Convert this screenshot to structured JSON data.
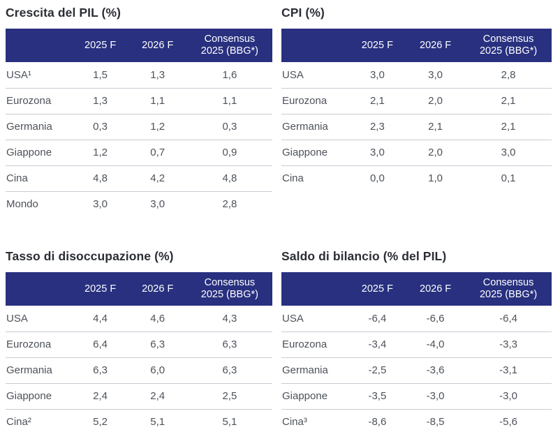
{
  "colors": {
    "header_bg": "#28307f",
    "header_text": "#ffffff",
    "title_text": "#2b2e35",
    "cell_text": "#4d525a",
    "divider": "#c7ccd3",
    "background": "#ffffff"
  },
  "columns": [
    "2025 F",
    "2026 F",
    "Consensus\n2025 (BBG*)"
  ],
  "tables": [
    {
      "title": "Crescita del PIL (%)",
      "rows": [
        {
          "label": "USA¹",
          "values": [
            "1,5",
            "1,3",
            "1,6"
          ]
        },
        {
          "label": "Eurozona",
          "values": [
            "1,3",
            "1,1",
            "1,1"
          ]
        },
        {
          "label": "Germania",
          "values": [
            "0,3",
            "1,2",
            "0,3"
          ]
        },
        {
          "label": "Giappone",
          "values": [
            "1,2",
            "0,7",
            "0,9"
          ]
        },
        {
          "label": "Cina",
          "values": [
            "4,8",
            "4,2",
            "4,8"
          ]
        },
        {
          "label": "Mondo",
          "values": [
            "3,0",
            "3,0",
            "2,8"
          ]
        }
      ]
    },
    {
      "title": "CPI (%)",
      "rows": [
        {
          "label": "USA",
          "values": [
            "3,0",
            "3,0",
            "2,8"
          ]
        },
        {
          "label": "Eurozona",
          "values": [
            "2,1",
            "2,0",
            "2,1"
          ]
        },
        {
          "label": "Germania",
          "values": [
            "2,3",
            "2,1",
            "2,1"
          ]
        },
        {
          "label": "Giappone",
          "values": [
            "3,0",
            "2,0",
            "3,0"
          ]
        },
        {
          "label": "Cina",
          "values": [
            "0,0",
            "1,0",
            "0,1"
          ]
        }
      ]
    },
    {
      "title": "Tasso di disoccupazione (%)",
      "rows": [
        {
          "label": "USA",
          "values": [
            "4,4",
            "4,6",
            "4,3"
          ]
        },
        {
          "label": "Eurozona",
          "values": [
            "6,4",
            "6,3",
            "6,3"
          ]
        },
        {
          "label": "Germania",
          "values": [
            "6,3",
            "6,0",
            "6,3"
          ]
        },
        {
          "label": "Giappone",
          "values": [
            "2,4",
            "2,4",
            "2,5"
          ]
        },
        {
          "label": "Cina²",
          "values": [
            "5,2",
            "5,1",
            "5,1"
          ]
        }
      ]
    },
    {
      "title": "Saldo di bilancio (% del PIL)",
      "rows": [
        {
          "label": "USA",
          "values": [
            "-6,4",
            "-6,6",
            "-6,4"
          ]
        },
        {
          "label": "Eurozona",
          "values": [
            "-3,4",
            "-4,0",
            "-3,3"
          ]
        },
        {
          "label": "Germania",
          "values": [
            "-2,5",
            "-3,6",
            "-3,1"
          ]
        },
        {
          "label": "Giappone",
          "values": [
            "-3,5",
            "-3,0",
            "-3,0"
          ]
        },
        {
          "label": "Cina³",
          "values": [
            "-8,6",
            "-8,5",
            "-5,6"
          ]
        }
      ]
    }
  ]
}
